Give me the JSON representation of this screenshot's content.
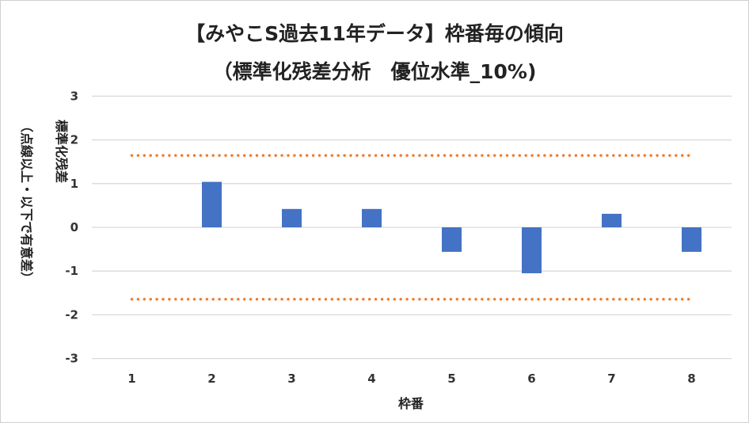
{
  "chart_data": {
    "type": "bar",
    "title": "【みやこS過去11年データ】枠番毎の傾向",
    "subtitle": "（標準化残差分析　優位水準_10%)",
    "xlabel": "枠番",
    "ylabel": "標準化残差",
    "ylabel_note": "（点線以上・以下で有意差）",
    "categories": [
      "1",
      "2",
      "3",
      "4",
      "5",
      "6",
      "7",
      "8"
    ],
    "values": [
      0,
      1.04,
      0.42,
      0.42,
      -0.56,
      -1.05,
      0.31,
      -0.56
    ],
    "thresholds": [
      1.645,
      -1.645
    ],
    "ylim": [
      -3,
      3
    ],
    "yticks": [
      3,
      2,
      1,
      0,
      -1,
      -2,
      -3
    ],
    "grid": true,
    "colors": {
      "bar": "#4472C4",
      "threshold": "#ED7D31",
      "grid": "#D9D9D9"
    }
  }
}
